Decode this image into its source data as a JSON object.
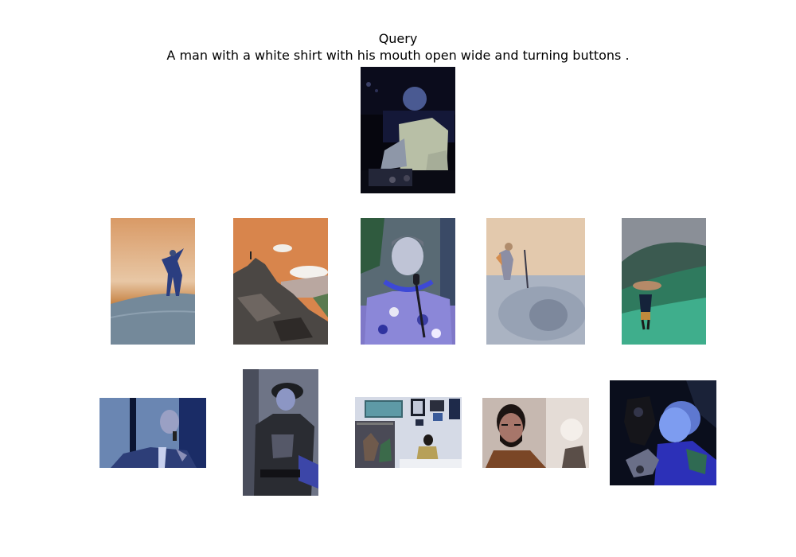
{
  "header": {
    "label": "Query",
    "caption": "A man with a white shirt with his mouth open wide and turning buttons ."
  },
  "query_image": {
    "alt": "man in white shirt at a DJ mixer in dark room"
  },
  "results": [
    {
      "alt": "person jumping on a sand dune"
    },
    {
      "alt": "person standing on top of a rocky peak"
    },
    {
      "alt": "smiling man with lei holding a microphone"
    },
    {
      "alt": "person next to a sand sculpture of a face"
    },
    {
      "alt": "person with umbrella on a green hillside"
    },
    {
      "alt": "bald man in suit speaking into a microphone"
    },
    {
      "alt": "man in cap and dark t-shirt on stage"
    },
    {
      "alt": "person in a room with pictures on the walls"
    },
    {
      "alt": "man with glasses and beard"
    },
    {
      "alt": "boy holding a black device"
    }
  ]
}
